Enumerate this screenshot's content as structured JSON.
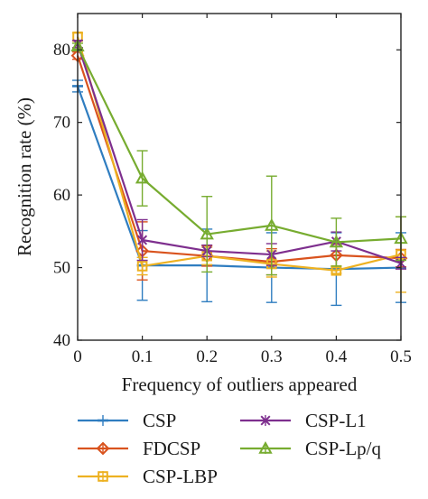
{
  "chart_data": {
    "type": "line",
    "title": "",
    "xlabel": "Frequency of outliers appeared",
    "ylabel": "Recognition rate (%)",
    "x": [
      0,
      0.1,
      0.2,
      0.3,
      0.4,
      0.5
    ],
    "x_tick_labels": [
      "0",
      "0.1",
      "0.2",
      "0.3",
      "0.4",
      "0.5"
    ],
    "y_ticks": [
      40,
      50,
      60,
      70,
      80
    ],
    "y_tick_labels": [
      "40",
      "50",
      "60",
      "70",
      "80"
    ],
    "xlim": [
      0,
      0.5
    ],
    "ylim": [
      40,
      85
    ],
    "grid": false,
    "legend_position": "bottom",
    "series": [
      {
        "name": "CSP",
        "color": "#2f7dc0",
        "marker": "bar",
        "values": [
          75.0,
          50.3,
          50.3,
          50.0,
          49.8,
          50.0
        ],
        "error": [
          0.8,
          4.8,
          5.0,
          4.8,
          5.0,
          4.8
        ]
      },
      {
        "name": "FDCSP",
        "color": "#d9531e",
        "marker": "diamond",
        "values": [
          79.2,
          52.3,
          51.6,
          50.8,
          51.7,
          51.3
        ],
        "error": [
          0.5,
          4.0,
          1.4,
          1.8,
          1.5,
          1.2
        ]
      },
      {
        "name": "CSP-LBP",
        "color": "#edb121",
        "marker": "square",
        "values": [
          81.8,
          50.2,
          51.6,
          50.5,
          49.6,
          51.8
        ],
        "error": [
          0.5,
          1.2,
          1.2,
          1.8,
          0.4,
          5.2
        ]
      },
      {
        "name": "CSP-L1",
        "color": "#7e2f8e",
        "marker": "x",
        "values": [
          80.8,
          53.8,
          52.3,
          51.8,
          53.6,
          50.6
        ],
        "error": [
          0.5,
          2.8,
          0.8,
          1.5,
          1.3,
          0.8
        ]
      },
      {
        "name": "CSP-Lp/q",
        "color": "#77ac30",
        "marker": "triangle",
        "values": [
          80.5,
          62.3,
          54.6,
          55.8,
          53.5,
          54.0
        ],
        "error": [
          0.4,
          3.8,
          5.2,
          6.8,
          3.3,
          3.0
        ]
      }
    ]
  }
}
